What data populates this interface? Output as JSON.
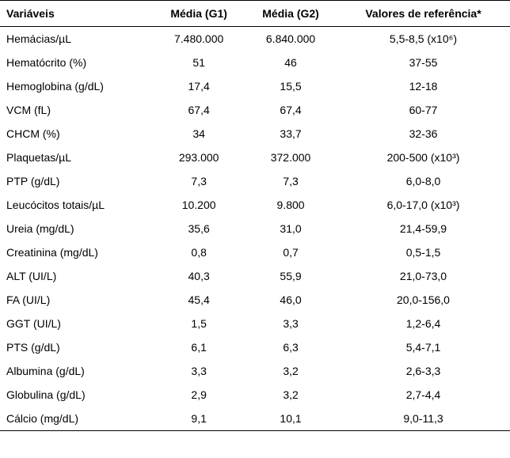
{
  "table": {
    "type": "table",
    "background_color": "#ffffff",
    "text_color": "#000000",
    "border_color": "#000000",
    "header_fontsize": 14,
    "cell_fontsize": 14,
    "columns": [
      {
        "key": "variaveis",
        "label": "Variáveis",
        "align": "left",
        "width": "30%"
      },
      {
        "key": "media_g1",
        "label": "Média (G1)",
        "align": "center",
        "width": "18%"
      },
      {
        "key": "media_g2",
        "label": "Média (G2)",
        "align": "center",
        "width": "18%"
      },
      {
        "key": "valores_ref",
        "label": "Valores de referência*",
        "align": "center",
        "width": "34%"
      }
    ],
    "rows": [
      {
        "variaveis": "Hemácias/µL",
        "media_g1": "7.480.000",
        "media_g2": "6.840.000",
        "valores_ref": "5,5-8,5 (x10⁶)"
      },
      {
        "variaveis": "Hematócrito (%)",
        "media_g1": "51",
        "media_g2": "46",
        "valores_ref": "37-55"
      },
      {
        "variaveis": "Hemoglobina (g/dL)",
        "media_g1": "17,4",
        "media_g2": "15,5",
        "valores_ref": "12-18"
      },
      {
        "variaveis": "VCM (fL)",
        "media_g1": "67,4",
        "media_g2": "67,4",
        "valores_ref": "60-77"
      },
      {
        "variaveis": "CHCM (%)",
        "media_g1": "34",
        "media_g2": "33,7",
        "valores_ref": "32-36"
      },
      {
        "variaveis": "Plaquetas/µL",
        "media_g1": "293.000",
        "media_g2": "372.000",
        "valores_ref": "200-500 (x10³)"
      },
      {
        "variaveis": "PTP (g/dL)",
        "media_g1": "7,3",
        "media_g2": "7,3",
        "valores_ref": "6,0-8,0"
      },
      {
        "variaveis": "Leucócitos totais/µL",
        "media_g1": "10.200",
        "media_g2": "9.800",
        "valores_ref": "6,0-17,0 (x10³)"
      },
      {
        "variaveis": "Ureia (mg/dL)",
        "media_g1": "35,6",
        "media_g2": "31,0",
        "valores_ref": "21,4-59,9"
      },
      {
        "variaveis": "Creatinina (mg/dL)",
        "media_g1": "0,8",
        "media_g2": "0,7",
        "valores_ref": "0,5-1,5"
      },
      {
        "variaveis": "ALT (UI/L)",
        "media_g1": "40,3",
        "media_g2": "55,9",
        "valores_ref": "21,0-73,0"
      },
      {
        "variaveis": "FA  (UI/L)",
        "media_g1": "45,4",
        "media_g2": "46,0",
        "valores_ref": "20,0-156,0"
      },
      {
        "variaveis": "GGT (UI/L)",
        "media_g1": "1,5",
        "media_g2": "3,3",
        "valores_ref": "1,2-6,4"
      },
      {
        "variaveis": "PTS (g/dL)",
        "media_g1": "6,1",
        "media_g2": "6,3",
        "valores_ref": "5,4-7,1"
      },
      {
        "variaveis": "Albumina (g/dL)",
        "media_g1": "3,3",
        "media_g2": "3,2",
        "valores_ref": "2,6-3,3"
      },
      {
        "variaveis": "Globulina (g/dL)",
        "media_g1": "2,9",
        "media_g2": "3,2",
        "valores_ref": "2,7-4,4"
      },
      {
        "variaveis": "Cálcio (mg/dL)",
        "media_g1": "9,1",
        "media_g2": "10,1",
        "valores_ref": "9,0-11,3"
      }
    ]
  }
}
